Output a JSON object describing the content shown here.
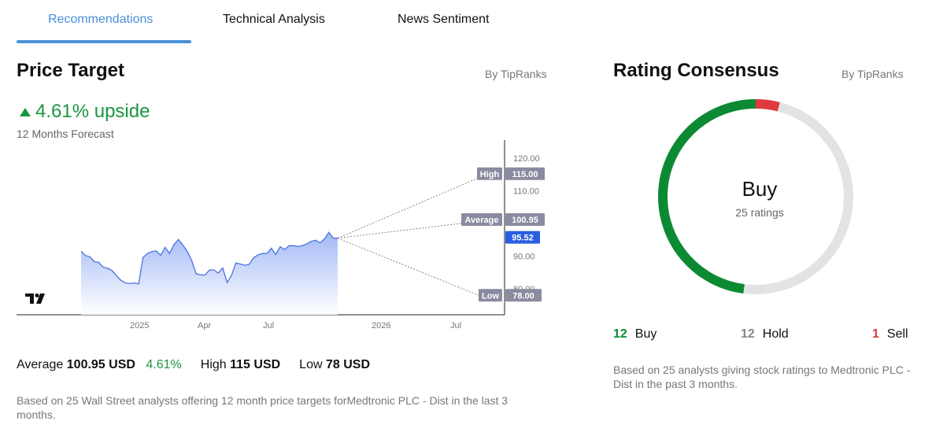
{
  "tabs": [
    {
      "label": "Recommendations",
      "active": true
    },
    {
      "label": "Technical Analysis",
      "active": false
    },
    {
      "label": "News Sentiment",
      "active": false
    }
  ],
  "price_target": {
    "title": "Price Target",
    "byline": "By TipRanks",
    "upside": "4.61% upside",
    "forecast_label": "12 Months Forecast",
    "stats": {
      "average_label": "Average",
      "average_value": "100.95 USD",
      "average_pct": "4.61%",
      "high_label": "High",
      "high_value": "115 USD",
      "low_label": "Low",
      "low_value": "78 USD"
    },
    "note": "Based on 25 Wall Street analysts offering 12 month price targets forMedtronic PLC - Dist in the last 3 months."
  },
  "chart_data": {
    "type": "line",
    "title": "",
    "xlabel": "",
    "ylabel": "",
    "x_ticks": [
      "2025",
      "Apr",
      "Jul",
      "2026",
      "Jul"
    ],
    "y_ticks": [
      80,
      90,
      110,
      120
    ],
    "ylim": [
      75,
      123
    ],
    "series": [
      {
        "values": [
          91.5,
          90.2,
          89.8,
          88.3,
          88.1,
          86.6,
          86.3,
          85.6,
          84.0,
          82.6,
          81.8,
          81.6,
          81.8,
          81.5,
          89.6,
          90.8,
          91.4,
          91.6,
          90.3,
          92.7,
          90.8,
          93.5,
          95.1,
          93.4,
          91.5,
          88.7,
          84.6,
          84.3,
          84.2,
          85.7,
          85.8,
          84.8,
          86.4,
          81.9,
          84.1,
          87.9,
          87.6,
          87.2,
          87.5,
          89.5,
          90.4,
          90.8,
          90.8,
          92.4,
          90.5,
          92.9,
          92.0,
          93.2,
          93.2,
          93.0,
          93.2,
          93.8,
          94.5,
          94.9,
          94.1,
          95.2,
          97.3,
          95.5,
          95.5
        ]
      }
    ],
    "current_price": 95.52,
    "targets": {
      "high": 115.0,
      "average": 100.95,
      "low": 78.0
    },
    "target_labels": {
      "high": "High",
      "average": "Average",
      "low": "Low"
    },
    "target_values": {
      "high": "115.00",
      "average": "100.95",
      "low": "78.00",
      "current": "95.52"
    },
    "y_tick_labels": [
      "120.00",
      "110.00",
      "90.00",
      "80.00"
    ],
    "colors": {
      "line": "#4a72e0",
      "fill_top": "#9db4f5",
      "fill_bottom": "#ffffff",
      "label_bg": "#8a8aa0",
      "current_bg": "#2a5ee0"
    }
  },
  "consensus": {
    "title": "Rating Consensus",
    "byline": "By TipRanks",
    "rating": "Buy",
    "ratings_count": "25 ratings",
    "buy_count": "12",
    "buy_label": "Buy",
    "hold_count": "12",
    "hold_label": "Hold",
    "sell_count": "1",
    "sell_label": "Sell",
    "breakdown": {
      "buy": 12,
      "hold": 12,
      "sell": 1
    },
    "colors": {
      "buy": "#0b8a33",
      "hold": "#e3e3e6",
      "sell": "#e0393e"
    },
    "note": "Based on 25 analysts giving stock ratings to Medtronic PLC - Dist in the past 3 months."
  }
}
